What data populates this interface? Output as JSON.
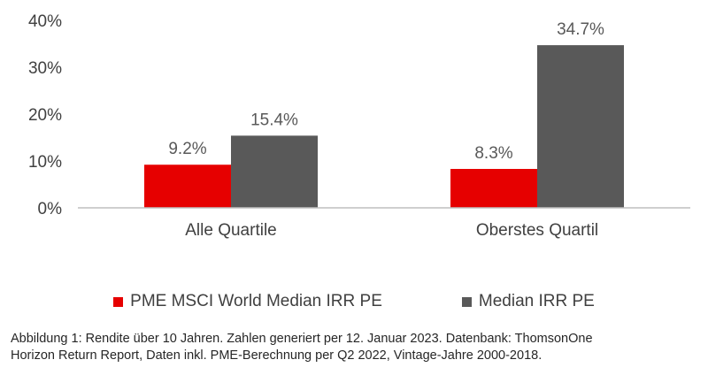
{
  "chart_data": {
    "type": "bar",
    "categories": [
      "Alle Quartile",
      "Oberstes Quartil"
    ],
    "series": [
      {
        "name": "PME MSCI World Median IRR PE",
        "values": [
          9.2,
          8.3
        ],
        "labels": [
          "9.2%",
          "8.3%"
        ],
        "color": "#e60000"
      },
      {
        "name": "Median IRR PE",
        "values": [
          15.4,
          34.7
        ],
        "labels": [
          "15.4%",
          "34.7%"
        ],
        "color": "#595959"
      }
    ],
    "ylim": [
      0,
      40
    ],
    "yticks": [
      0,
      10,
      20,
      30,
      40
    ],
    "ytick_labels": [
      "0%",
      "10%",
      "20%",
      "30%",
      "40%"
    ],
    "grid": false,
    "legend_position": "bottom"
  },
  "caption": {
    "line1": "Abbildung  1: Rendite über 10 Jahren. Zahlen generiert per 12. Januar 2023.  Datenbank: ThomsonOne",
    "line2": "Horizon Return Report, Daten inkl. PME-Berechnung per Q2 2022,  Vintage-Jahre 2000-2018."
  }
}
